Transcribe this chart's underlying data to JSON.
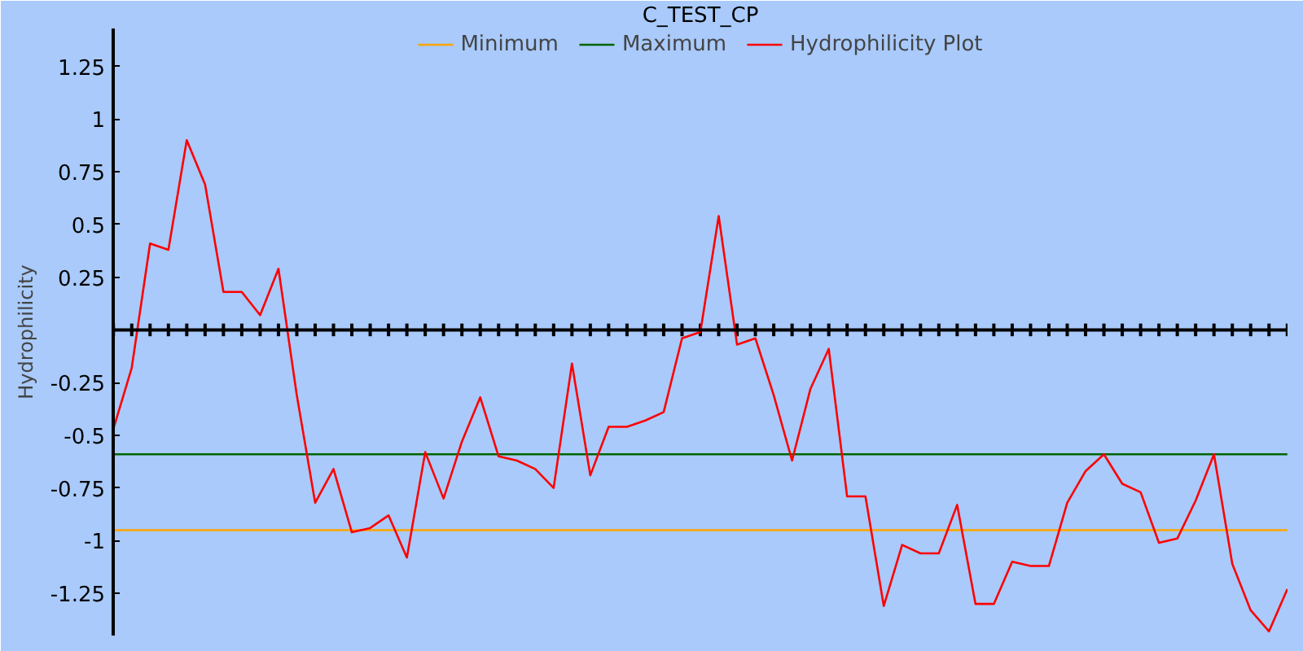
{
  "chart_data": {
    "type": "line",
    "title": "C_TEST_CP",
    "ylabel": "Hydrophilicity",
    "categories": [
      null,
      null,
      null,
      null,
      null,
      null,
      null,
      null,
      null,
      null,
      null,
      null,
      null,
      null,
      null,
      null,
      null,
      null,
      null,
      null,
      null,
      null,
      null,
      null,
      null,
      null,
      null,
      null,
      null,
      null,
      null,
      null,
      null,
      null,
      null,
      null,
      null,
      null,
      null,
      null,
      null,
      null,
      null,
      null,
      null,
      null,
      null,
      null,
      null,
      null,
      null,
      null,
      null,
      null,
      null,
      null,
      null,
      null,
      null,
      null,
      null,
      null,
      null,
      null,
      null
    ],
    "series": [
      {
        "name": "Minimum",
        "color": "#ffa500",
        "values": [
          -0.95,
          -0.95,
          -0.95,
          -0.95,
          -0.95,
          -0.95,
          -0.95,
          -0.95,
          -0.95,
          -0.95,
          -0.95,
          -0.95,
          -0.95,
          -0.95,
          -0.95,
          -0.95,
          -0.95,
          -0.95,
          -0.95,
          -0.95,
          -0.95,
          -0.95,
          -0.95,
          -0.95,
          -0.95,
          -0.95,
          -0.95,
          -0.95,
          -0.95,
          -0.95,
          -0.95,
          -0.95,
          -0.95,
          -0.95,
          -0.95,
          -0.95,
          -0.95,
          -0.95,
          -0.95,
          -0.95,
          -0.95,
          -0.95,
          -0.95,
          -0.95,
          -0.95,
          -0.95,
          -0.95,
          -0.95,
          -0.95,
          -0.95,
          -0.95,
          -0.95,
          -0.95,
          -0.95,
          -0.95,
          -0.95,
          -0.95,
          -0.95,
          -0.95,
          -0.95,
          -0.95,
          -0.95,
          -0.95,
          -0.95,
          -0.95
        ]
      },
      {
        "name": "Maximum",
        "color": "#006400",
        "values": [
          -0.59,
          -0.59,
          -0.59,
          -0.59,
          -0.59,
          -0.59,
          -0.59,
          -0.59,
          -0.59,
          -0.59,
          -0.59,
          -0.59,
          -0.59,
          -0.59,
          -0.59,
          -0.59,
          -0.59,
          -0.59,
          -0.59,
          -0.59,
          -0.59,
          -0.59,
          -0.59,
          -0.59,
          -0.59,
          -0.59,
          -0.59,
          -0.59,
          -0.59,
          -0.59,
          -0.59,
          -0.59,
          -0.59,
          -0.59,
          -0.59,
          -0.59,
          -0.59,
          -0.59,
          -0.59,
          -0.59,
          -0.59,
          -0.59,
          -0.59,
          -0.59,
          -0.59,
          -0.59,
          -0.59,
          -0.59,
          -0.59,
          -0.59,
          -0.59,
          -0.59,
          -0.59,
          -0.59,
          -0.59,
          -0.59,
          -0.59,
          -0.59,
          -0.59,
          -0.59,
          -0.59,
          -0.59,
          -0.59,
          -0.59,
          -0.59
        ]
      },
      {
        "name": "Hydrophilicity Plot",
        "color": "#ff0000",
        "values": [
          -0.47,
          -0.18,
          0.41,
          0.38,
          0.9,
          0.69,
          0.18,
          0.18,
          0.07,
          0.29,
          -0.31,
          -0.82,
          -0.66,
          -0.96,
          -0.94,
          -0.88,
          -1.08,
          -0.58,
          -0.8,
          -0.53,
          -0.32,
          -0.6,
          -0.62,
          -0.66,
          -0.75,
          -0.16,
          -0.69,
          -0.46,
          -0.46,
          -0.43,
          -0.39,
          -0.04,
          -0.01,
          0.54,
          -0.07,
          -0.04,
          -0.31,
          -0.62,
          -0.28,
          -0.09,
          -0.79,
          -0.79,
          -1.31,
          -1.02,
          -1.06,
          -1.06,
          -0.83,
          -1.3,
          -1.3,
          -1.1,
          -1.12,
          -1.12,
          -0.82,
          -0.67,
          -0.59,
          -0.73,
          -0.77,
          -1.01,
          -0.99,
          -0.81,
          -0.59,
          -1.11,
          -1.33,
          -1.43,
          -1.23
        ]
      }
    ],
    "ylim": [
      -1.45,
      1.43
    ],
    "yticks": [
      -1.25,
      -1,
      -0.75,
      -0.5,
      -0.25,
      0.25,
      0.5,
      0.75,
      1,
      1.25
    ],
    "tick_labels": "y",
    "grid": false,
    "legend": "top",
    "marker": "none",
    "line_style": "solid"
  }
}
